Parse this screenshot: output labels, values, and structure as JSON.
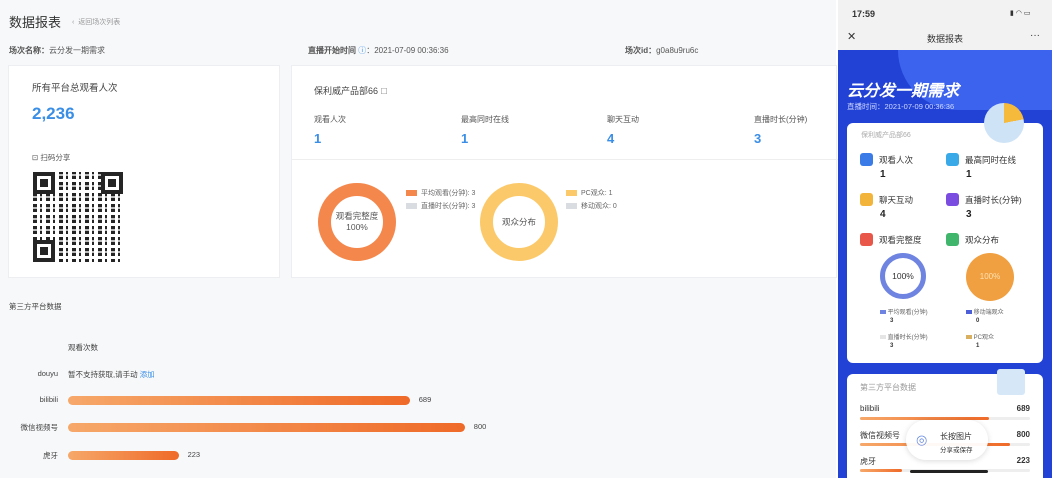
{
  "header": {
    "title": "数据报表",
    "back": "返回场次列表"
  },
  "info": {
    "name_label": "场次名称：",
    "name": "云分发一期需求",
    "start_label": "直播开始时间",
    "start": "：2021-07-09 00:36:36",
    "id_label": "场次id：",
    "id": "g0a8u9ru6c"
  },
  "total": {
    "label": "所有平台总观看人次",
    "value": "2,236",
    "share": "扫码分享"
  },
  "product": {
    "title": "保利威产品部66",
    "stats": [
      {
        "label": "观看人次",
        "value": "1"
      },
      {
        "label": "最高同时在线",
        "value": "1"
      },
      {
        "label": "聊天互动",
        "value": "4"
      },
      {
        "label": "直播时长(分钟)",
        "value": "3"
      }
    ],
    "donut1": {
      "center": "观看完整度",
      "pct": "100%",
      "legend": [
        "平均观看(分钟): 3",
        "直播时长(分钟): 3"
      ],
      "colors": [
        "#f4874b",
        "#d9dce1"
      ]
    },
    "donut2": {
      "center": "观众分布",
      "legend": [
        "PC观众: 1",
        "移动观众: 0"
      ],
      "colors": [
        "#fbc96a",
        "#d9dce1"
      ]
    }
  },
  "third": {
    "title": "第三方平台数据",
    "col": "观看次数",
    "douyu": {
      "name": "douyu",
      "msg": "暂不支持获取,请手动",
      "link": "添加"
    },
    "rows": [
      {
        "name": "bilibili",
        "value": 689
      },
      {
        "name": "微信视频号",
        "value": 800
      },
      {
        "name": "虎牙",
        "value": 223
      }
    ]
  },
  "phone": {
    "time": "17:59",
    "title": "数据报表",
    "hero": "云分发一期需求",
    "live_time": "直播时间：2021-07-09 00:36:36",
    "org": "保利威产品部66",
    "stats": [
      {
        "label": "观看人次",
        "value": "1",
        "color": "#3a7be8"
      },
      {
        "label": "最高同时在线",
        "value": "1",
        "color": "#3aa9e8"
      },
      {
        "label": "聊天互动",
        "value": "4",
        "color": "#f3b43c"
      },
      {
        "label": "直播时长(分钟)",
        "value": "3",
        "color": "#7a4de0"
      }
    ],
    "sec1": "观看完整度",
    "sec2": "观众分布",
    "pct1": "100%",
    "pct2": "100%",
    "legend": [
      {
        "label": "平均观看(分钟)",
        "value": "3"
      },
      {
        "label": "移动端观众",
        "value": "0"
      },
      {
        "label": "直播时长(分钟)",
        "value": "3"
      },
      {
        "label": "PC观众",
        "value": "1"
      }
    ],
    "third_title": "第三方平台数据",
    "rows": [
      {
        "name": "bilibili",
        "value": "689"
      },
      {
        "name": "微信视频号",
        "value": "800"
      },
      {
        "name": "虎牙",
        "value": "223"
      }
    ],
    "toast1": "长按图片",
    "toast2": "分享或保存"
  }
}
